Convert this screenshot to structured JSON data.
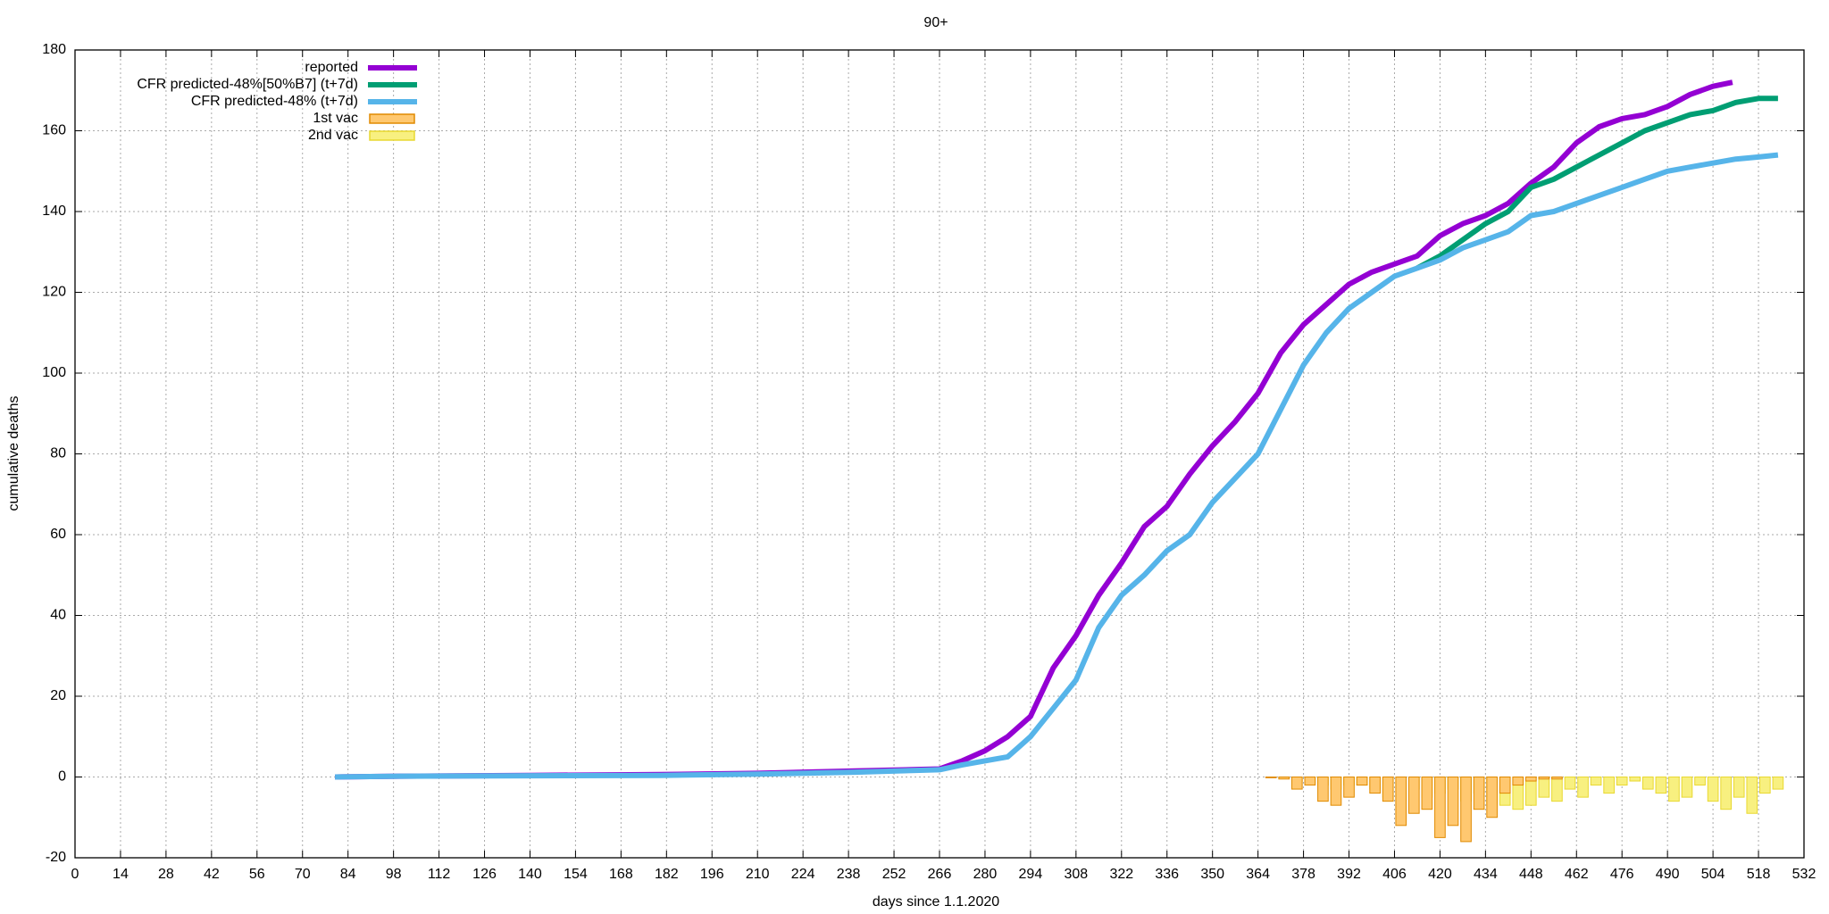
{
  "chart_data": {
    "type": "line",
    "title": "90+",
    "x_label": "days since 1.1.2020",
    "y_label": "cumulative deaths",
    "xlim": [
      0,
      532
    ],
    "xticks": [
      0,
      14,
      28,
      42,
      56,
      70,
      84,
      98,
      112,
      126,
      140,
      154,
      168,
      182,
      196,
      210,
      224,
      238,
      252,
      266,
      280,
      294,
      308,
      322,
      336,
      350,
      364,
      378,
      392,
      406,
      420,
      434,
      448,
      462,
      476,
      490,
      504,
      518,
      532
    ],
    "ylim": [
      -20,
      180
    ],
    "yticks": [
      -20,
      0,
      20,
      40,
      60,
      80,
      100,
      120,
      140,
      160,
      180
    ],
    "grid": true,
    "legend": "top-left",
    "series": [
      {
        "name": "reported",
        "type": "line",
        "color": "#9400d3",
        "x": [
          80,
          100,
          140,
          180,
          210,
          240,
          266,
          273,
          280,
          287,
          294,
          301,
          308,
          315,
          322,
          329,
          336,
          343,
          350,
          357,
          364,
          371,
          378,
          385,
          392,
          399,
          406,
          413,
          420,
          427,
          434,
          441,
          448,
          455,
          462,
          469,
          476,
          483,
          490,
          497,
          504,
          510
        ],
        "values": [
          0,
          0.2,
          0.4,
          0.6,
          0.9,
          1.5,
          2,
          4,
          6.5,
          10,
          15,
          27,
          35,
          45,
          53,
          62,
          67,
          75,
          82,
          88,
          95,
          105,
          112,
          117,
          122,
          125,
          127,
          129,
          134,
          137,
          139,
          142,
          147,
          151,
          157,
          161,
          163,
          164,
          166,
          169,
          171,
          172
        ]
      },
      {
        "name": "CFR predicted-48%[50%B7] (t+7d)",
        "type": "line",
        "color": "#009e73",
        "x": [
          413,
          420,
          427,
          434,
          441,
          448,
          455,
          462,
          469,
          476,
          483,
          490,
          497,
          504,
          511,
          518,
          524
        ],
        "values": [
          126,
          129,
          133,
          137,
          140,
          146,
          148,
          151,
          154,
          157,
          160,
          162,
          164,
          165,
          167,
          168,
          168
        ]
      },
      {
        "name": "CFR predicted-48% (t+7d)",
        "type": "line",
        "color": "#56b4e9",
        "x": [
          80,
          100,
          140,
          180,
          210,
          240,
          266,
          273,
          280,
          287,
          294,
          301,
          308,
          315,
          322,
          329,
          336,
          343,
          350,
          357,
          364,
          371,
          378,
          385,
          392,
          399,
          406,
          413,
          420,
          427,
          434,
          441,
          448,
          455,
          462,
          469,
          476,
          483,
          490,
          497,
          504,
          511,
          518,
          524
        ],
        "values": [
          0,
          0.2,
          0.3,
          0.4,
          0.7,
          1.2,
          1.8,
          3,
          4,
          5,
          10,
          17,
          24,
          37,
          45,
          50,
          56,
          60,
          68,
          74,
          80,
          91,
          102,
          110,
          116,
          120,
          124,
          126,
          128,
          131,
          133,
          135,
          139,
          140,
          142,
          144,
          146,
          148,
          150,
          151,
          152,
          153,
          153.5,
          154
        ]
      },
      {
        "name": "1st vac",
        "type": "bar",
        "color": "#ffc870",
        "edge": "#e08a00",
        "x": [
          368,
          372,
          376,
          380,
          384,
          388,
          392,
          396,
          400,
          404,
          408,
          412,
          416,
          420,
          424,
          428,
          432,
          436,
          440,
          444,
          448,
          452,
          456,
          460,
          464,
          468,
          472,
          476,
          480,
          484,
          488,
          492,
          496,
          500,
          504,
          508,
          512,
          516,
          520,
          524
        ],
        "values": [
          -0.2,
          -0.5,
          -3,
          -2,
          -6,
          -7,
          -5,
          -2,
          -4,
          -6,
          -12,
          -9,
          -8,
          -15,
          -12,
          -16,
          -8,
          -10,
          -4,
          -2,
          -1,
          -0.5,
          -0.5,
          0,
          0,
          0,
          0,
          0,
          0,
          0,
          0,
          0,
          0,
          0,
          0,
          0,
          0,
          0,
          0,
          0
        ]
      },
      {
        "name": "2nd vac",
        "type": "bar",
        "color": "#f8f080",
        "edge": "#e8d830",
        "x": [
          368,
          372,
          376,
          380,
          384,
          388,
          392,
          396,
          400,
          404,
          408,
          412,
          416,
          420,
          424,
          428,
          432,
          436,
          440,
          444,
          448,
          452,
          456,
          460,
          464,
          468,
          472,
          476,
          480,
          484,
          488,
          492,
          496,
          500,
          504,
          508,
          512,
          516,
          520,
          524
        ],
        "values": [
          0,
          -0.3,
          -1,
          -1.5,
          -2,
          -3,
          -2,
          -2,
          -3,
          -5,
          -6,
          -3,
          -5,
          -4,
          -3,
          -6,
          -4,
          -7,
          -7,
          -8,
          -7,
          -5,
          -6,
          -3,
          -5,
          -2,
          -4,
          -2,
          -1,
          -3,
          -4,
          -6,
          -5,
          -2,
          -6,
          -8,
          -5,
          -9,
          -4,
          -3
        ]
      }
    ]
  }
}
